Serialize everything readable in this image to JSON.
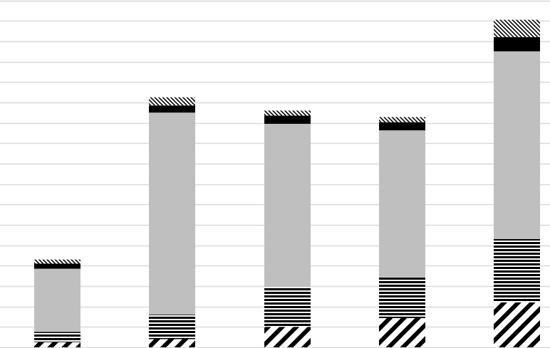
{
  "chart_data": {
    "type": "bar",
    "stacked": true,
    "title": "",
    "xlabel": "",
    "ylabel": "",
    "ylim": [
      0,
      17
    ],
    "grid": true,
    "gridline_step": 1,
    "legend": "none",
    "bar_count": 5,
    "series": [
      {
        "fill": "diagonal-wide",
        "color": "#000000",
        "values": [
          0.25,
          0.4,
          1.0,
          1.43,
          2.2
        ]
      },
      {
        "fill": "horizontal-stripes",
        "color": "#000000",
        "values": [
          0.5,
          1.2,
          1.95,
          2.0,
          3.1
        ]
      },
      {
        "fill": "solid",
        "color": "#bfbfbf",
        "values": [
          3.1,
          9.9,
          8.0,
          7.2,
          9.2
        ]
      },
      {
        "fill": "solid",
        "color": "#000000",
        "values": [
          0.25,
          0.35,
          0.4,
          0.4,
          0.7
        ]
      },
      {
        "fill": "diagonal-fine",
        "color": "#000000",
        "values": [
          0.2,
          0.4,
          0.25,
          0.25,
          0.85
        ]
      }
    ],
    "gridline_color": "#d9d9d9"
  }
}
